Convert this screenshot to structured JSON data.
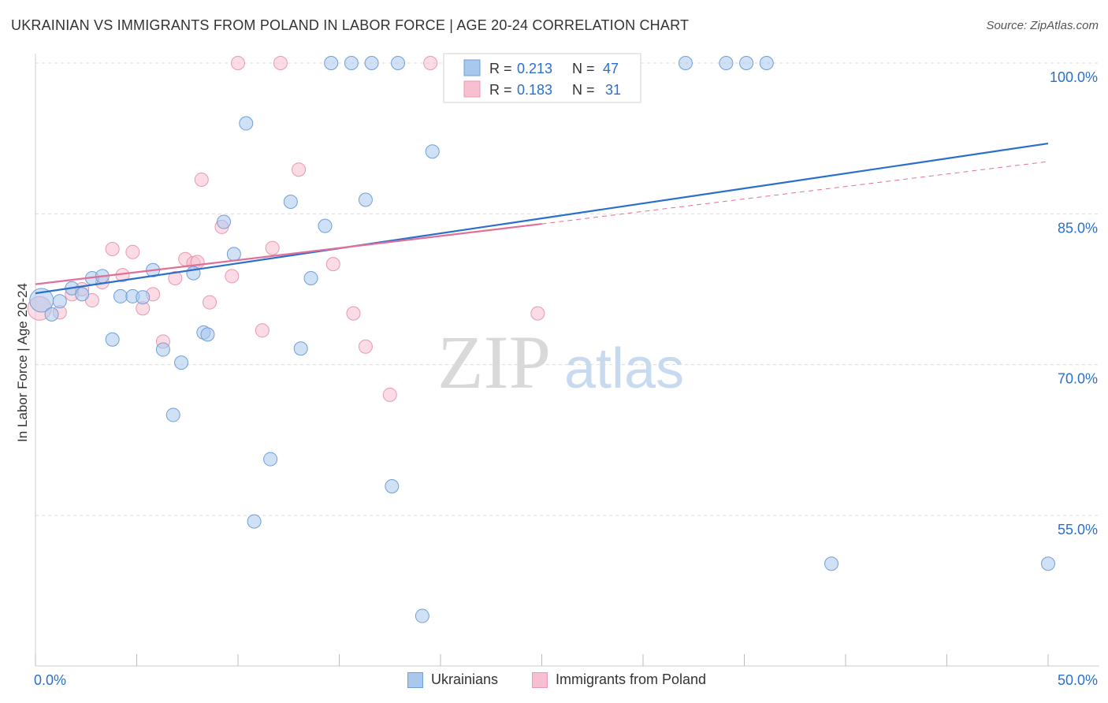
{
  "title": "UKRAINIAN VS IMMIGRANTS FROM POLAND IN LABOR FORCE | AGE 20-24 CORRELATION CHART",
  "source": "Source: ZipAtlas.com",
  "watermark": {
    "zip": "ZIP",
    "atlas": "atlas"
  },
  "chart_data": {
    "type": "scatter",
    "ylabel": "In Labor Force | Age 20-24",
    "xlim": [
      0,
      50
    ],
    "ylim": [
      40,
      102
    ],
    "x_tick_labels": [
      "0.0%",
      "50.0%"
    ],
    "y_ticks": [
      {
        "value": 100,
        "label": "100.0%"
      },
      {
        "value": 85,
        "label": "85.0%"
      },
      {
        "value": 70,
        "label": "70.0%"
      },
      {
        "value": 55,
        "label": "55.0%"
      }
    ],
    "grid": true,
    "legend_position": "top-center",
    "colors": {
      "blue_fill": "#a9c8ee",
      "blue_stroke": "#6f9fd8",
      "blue_line": "#2a6fcc",
      "pink_fill": "#f7bfcf",
      "pink_stroke": "#e898b0",
      "pink_line": "#e0709a",
      "value_text": "#2a6fcc"
    },
    "stats": [
      {
        "series": "Ukrainians",
        "r_label": "R =",
        "r_value": "0.213",
        "n_label": "N =",
        "n_value": "47"
      },
      {
        "series": "Immigrants from Poland",
        "r_label": "R =",
        "r_value": "0.183",
        "n_label": "N =",
        "n_value": "31"
      }
    ],
    "series": [
      {
        "name": "Ukrainians",
        "trend": {
          "x": [
            0,
            50
          ],
          "y": [
            77.1,
            92.0
          ]
        },
        "points": [
          [
            0.3,
            76.4
          ],
          [
            0.8,
            75.0
          ],
          [
            1.2,
            76.3
          ],
          [
            1.8,
            77.6
          ],
          [
            2.3,
            77.0
          ],
          [
            2.8,
            78.6
          ],
          [
            3.3,
            78.8
          ],
          [
            3.8,
            72.5
          ],
          [
            4.2,
            76.8
          ],
          [
            4.8,
            76.8
          ],
          [
            5.3,
            76.7
          ],
          [
            5.8,
            79.4
          ],
          [
            6.3,
            71.5
          ],
          [
            6.8,
            65.0
          ],
          [
            7.2,
            70.2
          ],
          [
            7.8,
            79.1
          ],
          [
            8.3,
            73.2
          ],
          [
            8.5,
            73.0
          ],
          [
            9.3,
            84.2
          ],
          [
            9.8,
            81.0
          ],
          [
            10.4,
            94.0
          ],
          [
            10.8,
            54.4
          ],
          [
            11.6,
            60.6
          ],
          [
            12.6,
            86.2
          ],
          [
            13.1,
            71.6
          ],
          [
            13.6,
            78.6
          ],
          [
            14.3,
            83.8
          ],
          [
            14.6,
            100.0
          ],
          [
            15.6,
            100.0
          ],
          [
            16.3,
            86.4
          ],
          [
            16.6,
            100.0
          ],
          [
            17.6,
            57.9
          ],
          [
            17.9,
            100.0
          ],
          [
            19.1,
            45.0
          ],
          [
            19.6,
            91.2
          ],
          [
            21.1,
            100.0
          ],
          [
            23.6,
            100.0
          ],
          [
            29.1,
            100.0
          ],
          [
            32.1,
            100.0
          ],
          [
            34.1,
            100.0
          ],
          [
            35.1,
            100.0
          ],
          [
            36.1,
            100.0
          ],
          [
            39.3,
            50.2
          ],
          [
            50.0,
            50.2
          ],
          [
            22.5,
            100.0
          ],
          [
            24.5,
            100.0
          ],
          [
            26.5,
            100.0
          ]
        ]
      },
      {
        "name": "Immigrants from Poland",
        "trend": {
          "x": [
            0,
            25
          ],
          "y": [
            78.0,
            84.0
          ]
        },
        "trend_dashed": {
          "x": [
            25,
            50
          ],
          "y": [
            84.0,
            90.2
          ]
        },
        "points": [
          [
            0.2,
            75.6
          ],
          [
            1.2,
            75.2
          ],
          [
            1.8,
            77.0
          ],
          [
            2.3,
            77.5
          ],
          [
            2.8,
            76.4
          ],
          [
            3.3,
            78.2
          ],
          [
            3.8,
            81.5
          ],
          [
            4.3,
            78.9
          ],
          [
            4.8,
            81.2
          ],
          [
            5.3,
            75.6
          ],
          [
            5.8,
            77.0
          ],
          [
            6.3,
            72.3
          ],
          [
            6.9,
            78.6
          ],
          [
            7.4,
            80.5
          ],
          [
            7.8,
            80.1
          ],
          [
            8.2,
            88.4
          ],
          [
            8.6,
            76.2
          ],
          [
            9.2,
            83.7
          ],
          [
            9.7,
            78.8
          ],
          [
            10.0,
            100.0
          ],
          [
            11.2,
            73.4
          ],
          [
            11.7,
            81.6
          ],
          [
            12.1,
            100.0
          ],
          [
            13.0,
            89.4
          ],
          [
            14.7,
            80.0
          ],
          [
            15.7,
            75.1
          ],
          [
            16.3,
            71.8
          ],
          [
            17.5,
            67.0
          ],
          [
            19.5,
            100.0
          ],
          [
            24.8,
            75.1
          ],
          [
            8.0,
            80.2
          ]
        ]
      }
    ]
  }
}
